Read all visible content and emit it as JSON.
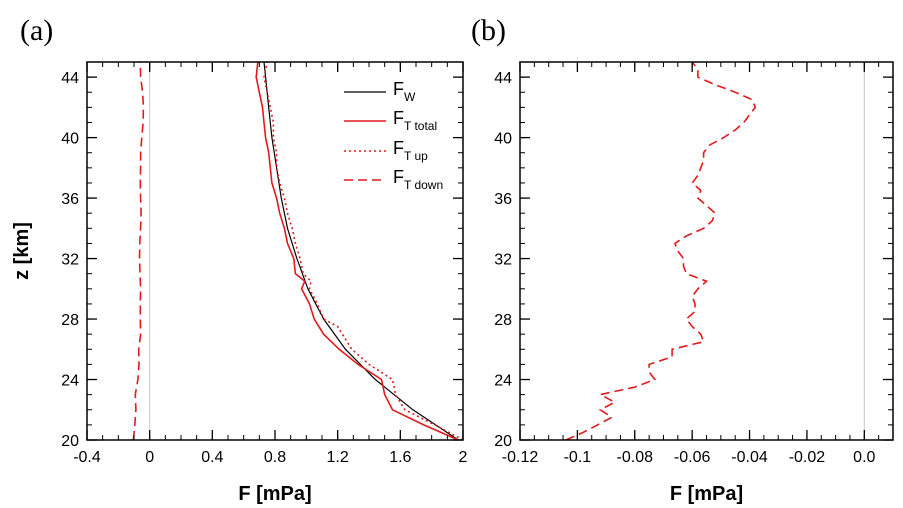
{
  "chart_data": [
    {
      "type": "line",
      "panel_label": "(a)",
      "xlabel": "F [mPa]",
      "ylabel": "z [km]",
      "xlim": [
        -0.4,
        2.0
      ],
      "ylim": [
        20,
        45
      ],
      "xticks": [
        -0.4,
        0,
        0.4,
        0.8,
        1.2,
        1.6,
        2
      ],
      "xtick_labels": [
        "-0.4",
        "0",
        "0.4",
        "0.8",
        "1.2",
        "1.6",
        "2"
      ],
      "yticks": [
        20,
        24,
        28,
        32,
        36,
        40,
        44
      ],
      "ytick_labels": [
        "20",
        "24",
        "28",
        "32",
        "36",
        "40",
        "44"
      ],
      "zero_line": true,
      "legend_position": "top-right",
      "series": [
        {
          "name": "F_W",
          "legend_main": "F",
          "legend_sub": "W",
          "color": "#000000",
          "dash": "solid",
          "z": [
            20,
            22,
            24,
            26,
            28,
            30,
            32,
            34,
            36,
            38,
            40,
            42,
            44,
            45
          ],
          "x": [
            1.97,
            1.68,
            1.44,
            1.25,
            1.11,
            1.01,
            0.94,
            0.88,
            0.84,
            0.81,
            0.78,
            0.76,
            0.74,
            0.73
          ]
        },
        {
          "name": "F_T total",
          "legend_main": "F",
          "legend_sub": "T total",
          "color": "#e31a1c",
          "dash": "solid",
          "z": [
            20,
            21,
            22,
            23,
            24,
            25,
            26,
            27,
            27.5,
            28,
            29,
            30,
            30.5,
            31,
            32,
            33,
            34,
            35,
            36,
            37,
            38,
            39,
            40,
            41,
            42,
            43,
            44,
            45
          ],
          "x": [
            1.97,
            1.75,
            1.55,
            1.5,
            1.48,
            1.33,
            1.21,
            1.11,
            1.08,
            1.05,
            1.02,
            0.97,
            0.99,
            0.93,
            0.92,
            0.88,
            0.86,
            0.83,
            0.81,
            0.78,
            0.77,
            0.76,
            0.74,
            0.73,
            0.72,
            0.7,
            0.68,
            0.69
          ]
        },
        {
          "name": "F_T up",
          "legend_main": "F",
          "legend_sub": "T up",
          "color": "#e31a1c",
          "dash": "dotted",
          "z": [
            20,
            21,
            22,
            23,
            24,
            25,
            26,
            27,
            27.5,
            28,
            29,
            30,
            30.5,
            31,
            32,
            33,
            34,
            35,
            36,
            37,
            38,
            39,
            40,
            41,
            42,
            43,
            44,
            45
          ],
          "x": [
            2.0,
            1.82,
            1.63,
            1.57,
            1.55,
            1.4,
            1.29,
            1.23,
            1.2,
            1.11,
            1.07,
            1.02,
            1.03,
            0.98,
            0.96,
            0.93,
            0.91,
            0.88,
            0.86,
            0.83,
            0.81,
            0.81,
            0.79,
            0.79,
            0.77,
            0.75,
            0.73,
            0.75
          ]
        },
        {
          "name": "F_T down",
          "legend_main": "F",
          "legend_sub": "T down",
          "color": "#e31a1c",
          "dash": "dashed",
          "z": [
            20,
            21,
            22,
            23,
            24,
            25,
            26,
            27,
            28,
            29,
            30,
            31,
            32,
            33,
            34,
            35,
            36,
            37,
            38,
            39,
            40,
            41,
            42,
            43,
            44,
            45
          ],
          "x": [
            -0.104,
            -0.095,
            -0.088,
            -0.092,
            -0.075,
            -0.068,
            -0.07,
            -0.058,
            -0.06,
            -0.06,
            -0.058,
            -0.062,
            -0.065,
            -0.063,
            -0.058,
            -0.055,
            -0.058,
            -0.06,
            -0.058,
            -0.058,
            -0.05,
            -0.042,
            -0.04,
            -0.045,
            -0.058,
            -0.06
          ]
        }
      ]
    },
    {
      "type": "line",
      "panel_label": "(b)",
      "xlabel": "F [mPa]",
      "ylabel": "",
      "xlim": [
        -0.12,
        0.01
      ],
      "ylim": [
        20,
        45
      ],
      "xticks": [
        -0.12,
        -0.1,
        -0.08,
        -0.06,
        -0.04,
        -0.02,
        0.0
      ],
      "xtick_labels": [
        "-0.12",
        "-0.1",
        "-0.08",
        "-0.06",
        "-0.04",
        "-0.02",
        "0.0"
      ],
      "yticks": [
        20,
        24,
        28,
        32,
        36,
        40,
        44
      ],
      "ytick_labels": [
        "20",
        "24",
        "28",
        "32",
        "36",
        "40",
        "44"
      ],
      "zero_line": true,
      "series": [
        {
          "name": "F_T down",
          "color": "#e31a1c",
          "dash": "dashed",
          "z": [
            20,
            20.5,
            21,
            21.5,
            22,
            22.5,
            23,
            23.5,
            24,
            24.5,
            25,
            25.5,
            26,
            26.5,
            27,
            27.5,
            28,
            28.5,
            29,
            29.5,
            30,
            30.5,
            31,
            31.5,
            32,
            32.5,
            33,
            33.5,
            34,
            34.5,
            35,
            35.5,
            36,
            36.5,
            37,
            37.5,
            38,
            38.5,
            39,
            39.5,
            40,
            40.5,
            41,
            41.5,
            42,
            42.5,
            43,
            43.5,
            44,
            44.5,
            45
          ],
          "x": [
            -0.104,
            -0.098,
            -0.093,
            -0.088,
            -0.092,
            -0.087,
            -0.092,
            -0.08,
            -0.073,
            -0.075,
            -0.075,
            -0.067,
            -0.067,
            -0.056,
            -0.057,
            -0.06,
            -0.062,
            -0.059,
            -0.059,
            -0.06,
            -0.058,
            -0.055,
            -0.062,
            -0.063,
            -0.063,
            -0.065,
            -0.066,
            -0.062,
            -0.056,
            -0.053,
            -0.052,
            -0.055,
            -0.058,
            -0.057,
            -0.06,
            -0.058,
            -0.057,
            -0.056,
            -0.056,
            -0.054,
            -0.049,
            -0.045,
            -0.042,
            -0.04,
            -0.038,
            -0.039,
            -0.045,
            -0.052,
            -0.058,
            -0.058,
            -0.06
          ]
        }
      ]
    }
  ]
}
